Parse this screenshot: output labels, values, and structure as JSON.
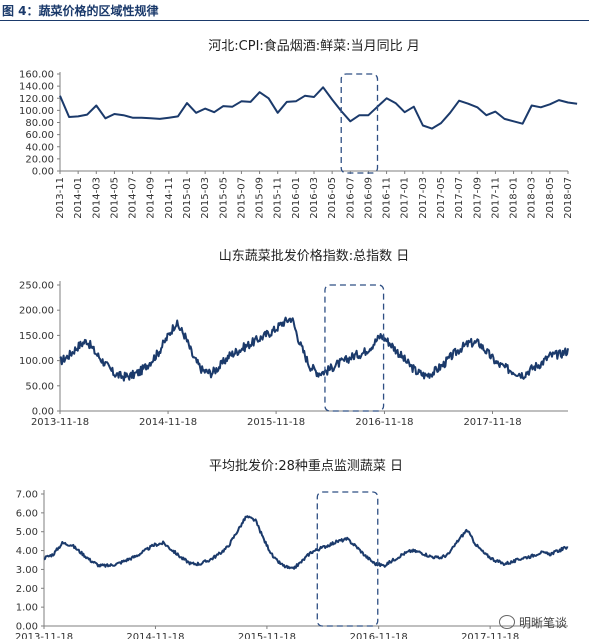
{
  "figure": {
    "label": "图 4：蔬菜价格的区域性规律",
    "accent_color": "#1b3a6b"
  },
  "watermark": {
    "text": "明晰笔谈",
    "icon": "chat-bubble-icon"
  },
  "chart_data": [
    {
      "type": "line",
      "title": "河北:CPI:食品烟酒:鲜菜:当月同比 月",
      "ylim": [
        0,
        160
      ],
      "yticks": [
        "0.00",
        "20.00",
        "40.00",
        "60.00",
        "80.00",
        "100.00",
        "120.00",
        "140.00",
        "160.00"
      ],
      "xtick_labels": [
        "2013-11",
        "2014-01",
        "2014-03",
        "2014-05",
        "2014-07",
        "2014-09",
        "2014-11",
        "2015-01",
        "2015-03",
        "2015-05",
        "2015-07",
        "2015-09",
        "2015-11",
        "2016-01",
        "2016-03",
        "2016-05",
        "2016-07",
        "2016-09",
        "2016-11",
        "2017-01",
        "2017-03",
        "2017-05",
        "2017-07",
        "2017-09",
        "2017-11",
        "2018-01",
        "2018-03",
        "2018-05",
        "2018-07"
      ],
      "x_start": "2013-11",
      "x_end": "2018-07",
      "values": [
        124,
        89,
        90,
        93,
        108,
        87,
        94,
        92,
        88,
        88,
        87,
        86,
        88,
        90,
        112,
        96,
        103,
        97,
        107,
        106,
        115,
        114,
        130,
        120,
        96,
        114,
        115,
        124,
        122,
        138,
        118,
        99,
        82,
        92,
        92,
        106,
        120,
        112,
        97,
        106,
        75,
        70,
        79,
        96,
        116,
        111,
        105,
        92,
        98,
        86,
        82,
        78,
        108,
        105,
        110,
        117,
        113,
        111
      ],
      "highlight": [
        "2016-06",
        "2016-10"
      ]
    },
    {
      "type": "line",
      "title": "山东蔬菜批发价格指数:总指数 日",
      "ylim": [
        0,
        250
      ],
      "yticks": [
        "0.00",
        "50.00",
        "100.00",
        "150.00",
        "200.00",
        "250.00"
      ],
      "xtick_labels": [
        "2013-11-18",
        "2014-11-18",
        "2015-11-18",
        "2016-11-18",
        "2017-11-18"
      ],
      "x_start": "2013-11-18",
      "x_end": "2018-07-31",
      "monthly_values": [
        98,
        110,
        128,
        140,
        115,
        95,
        75,
        68,
        70,
        78,
        95,
        115,
        145,
        175,
        150,
        105,
        80,
        75,
        90,
        110,
        120,
        130,
        140,
        150,
        160,
        175,
        185,
        130,
        90,
        75,
        80,
        92,
        100,
        110,
        115,
        130,
        150,
        135,
        115,
        95,
        78,
        70,
        78,
        92,
        110,
        125,
        135,
        135,
        115,
        95,
        85,
        78,
        72,
        85,
        95,
        110,
        112,
        120
      ],
      "highlight": [
        "2016-05-01",
        "2016-11-15"
      ]
    },
    {
      "type": "line",
      "title": "平均批发价:28种重点监测蔬菜 日",
      "ylim": [
        0,
        7
      ],
      "yticks": [
        "0.00",
        "1.00",
        "2.00",
        "3.00",
        "4.00",
        "5.00",
        "6.00",
        "7.00"
      ],
      "xtick_labels": [
        "2013-11-18",
        "2014-11-18",
        "2015-11-18",
        "2016-11-18",
        "2017-11-18"
      ],
      "x_start": "2013-11-18",
      "x_end": "2018-07-31",
      "monthly_values": [
        3.6,
        3.8,
        4.4,
        4.3,
        3.9,
        3.5,
        3.2,
        3.2,
        3.3,
        3.5,
        3.7,
        4.0,
        4.3,
        4.4,
        4.0,
        3.6,
        3.3,
        3.3,
        3.5,
        3.8,
        4.2,
        5.0,
        5.8,
        5.6,
        4.5,
        3.6,
        3.2,
        3.0,
        3.4,
        3.9,
        4.1,
        4.3,
        4.5,
        4.6,
        4.2,
        3.7,
        3.3,
        3.2,
        3.5,
        3.8,
        4.0,
        3.9,
        3.7,
        3.6,
        3.8,
        4.5,
        5.1,
        4.3,
        3.8,
        3.5,
        3.3,
        3.4,
        3.6,
        3.7,
        3.9,
        3.8,
        4.0,
        4.2
      ],
      "highlight": [
        "2016-05-01",
        "2016-11-15"
      ]
    }
  ]
}
